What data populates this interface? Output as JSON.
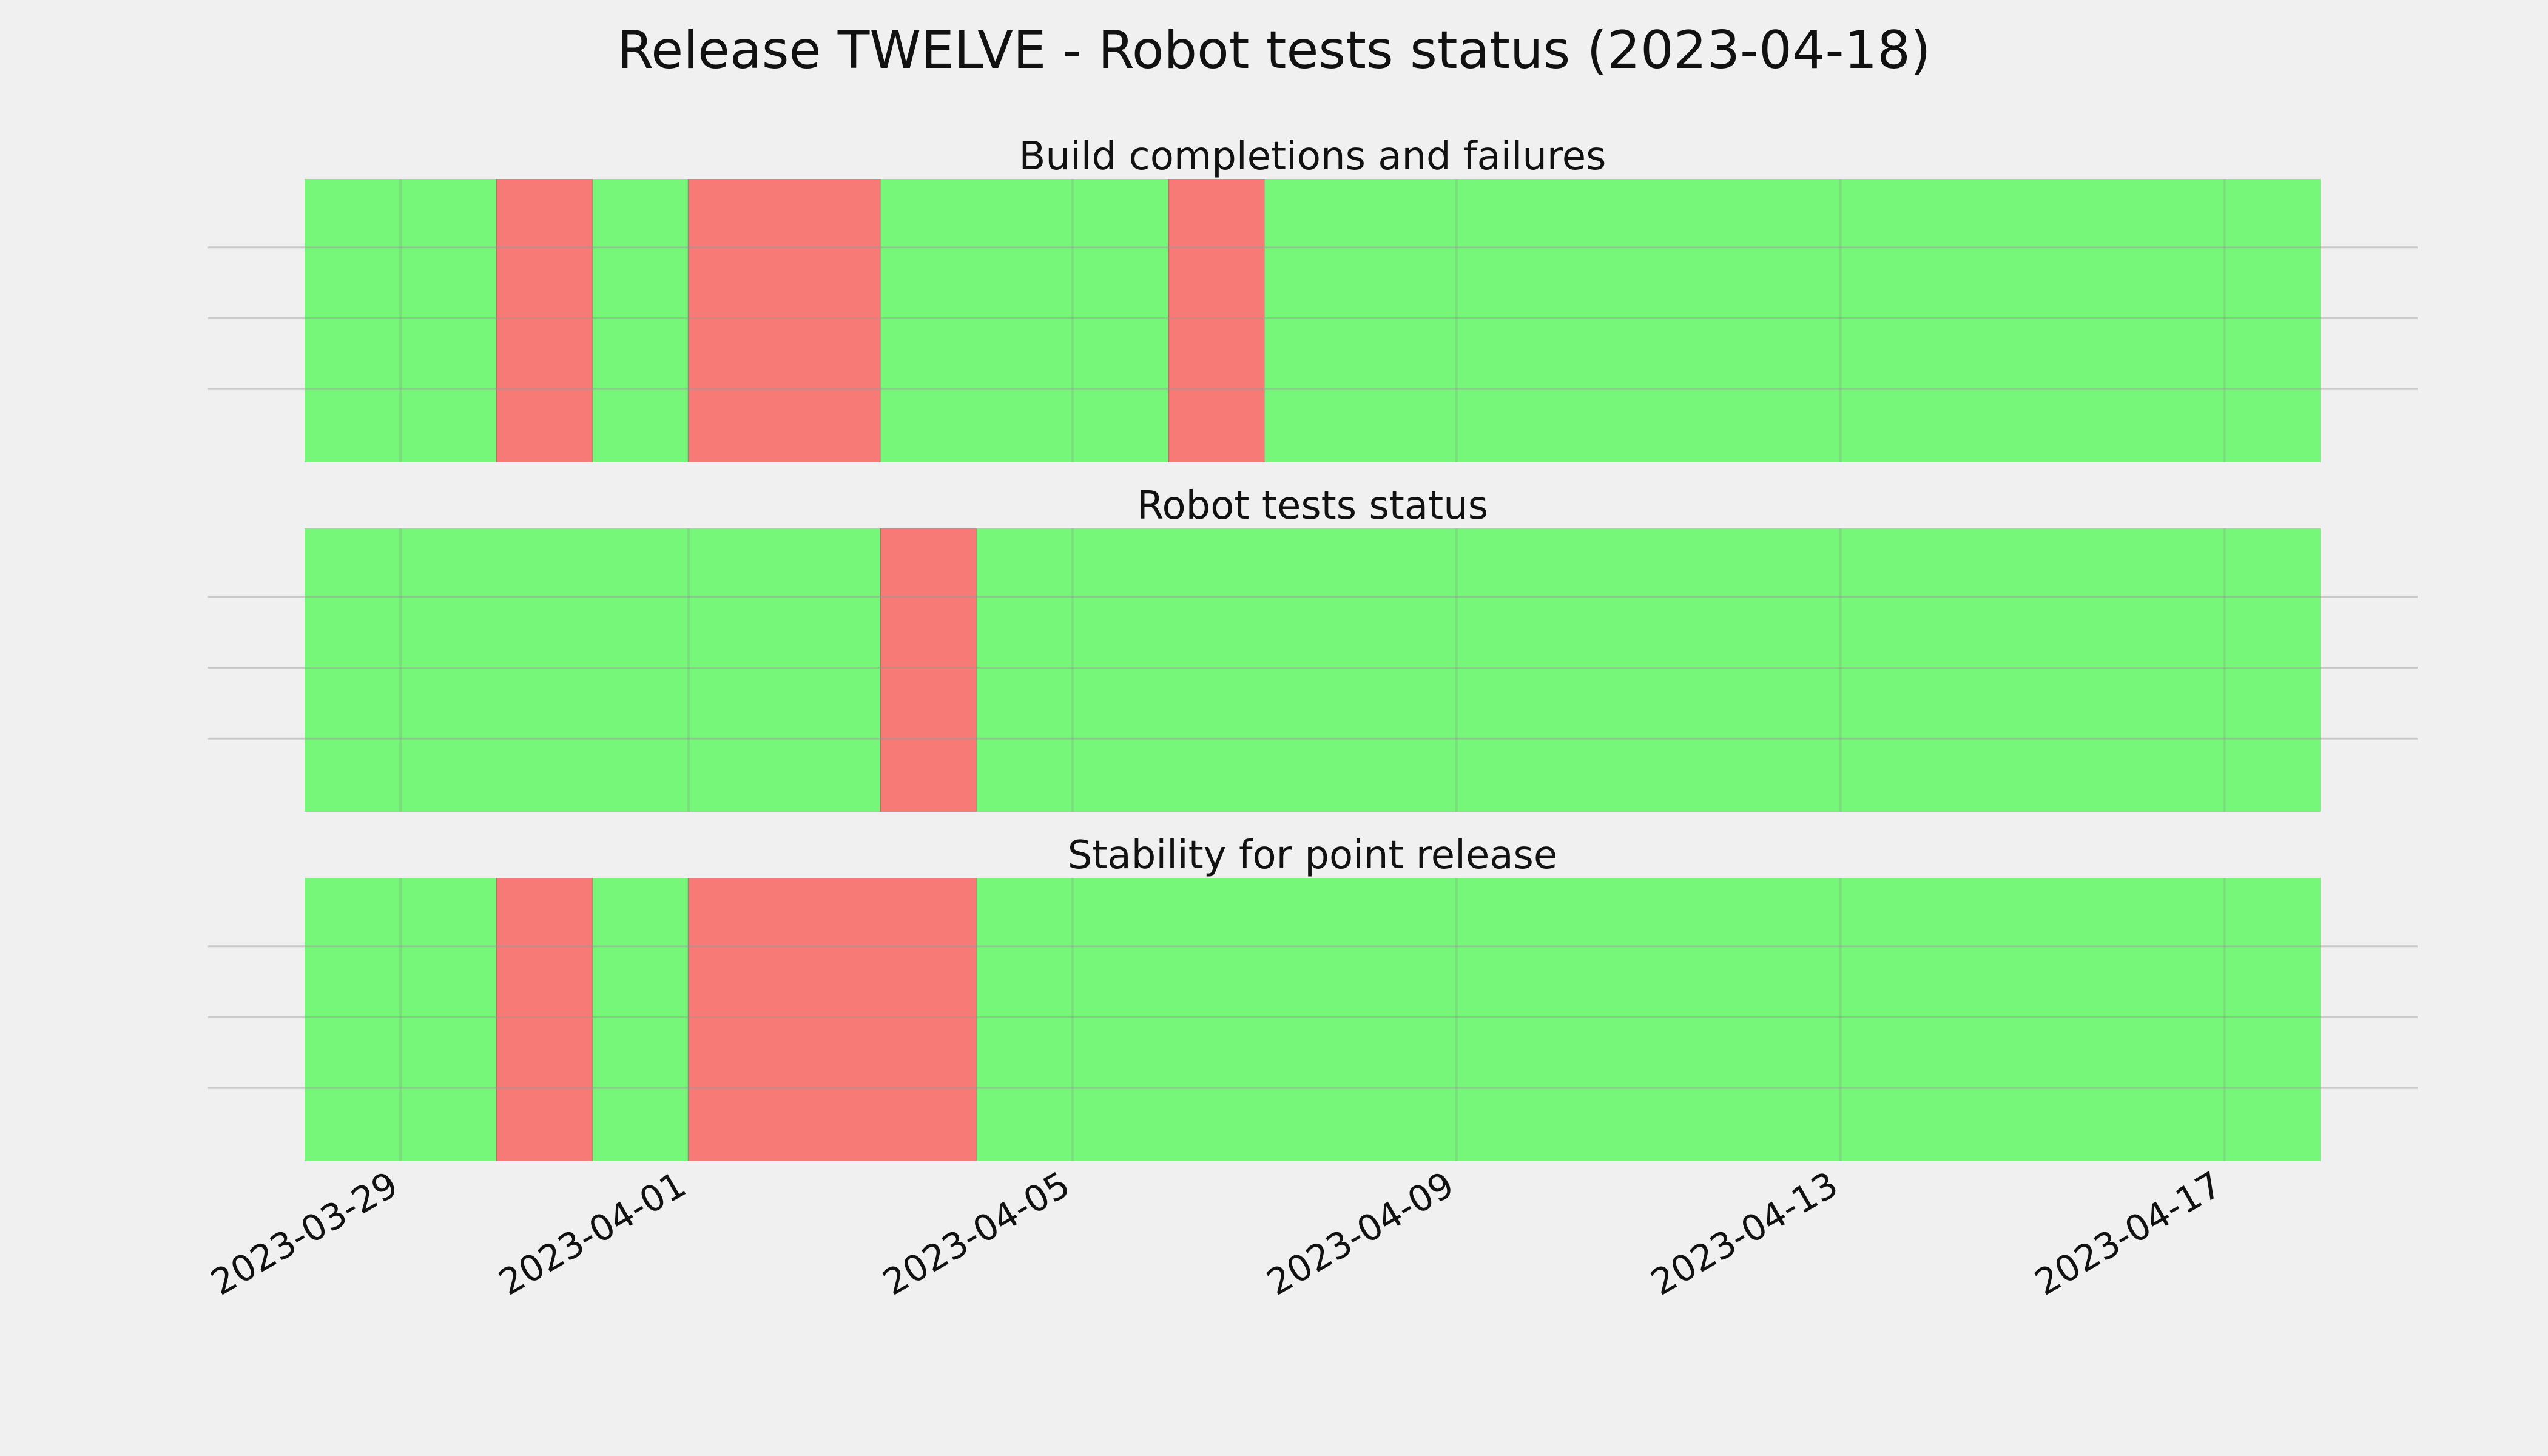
{
  "chart_data": {
    "type": "timeline",
    "title": "Release TWELVE - Robot tests status (2023-04-18)",
    "x_unit": "date",
    "xlim": [
      "2023-03-28",
      "2023-04-18"
    ],
    "x_tick_labels": [
      "2023-03-29",
      "2023-04-01",
      "2023-04-05",
      "2023-04-09",
      "2023-04-13",
      "2023-04-17"
    ],
    "grid": true,
    "colors": {
      "pass": "#77f77a",
      "fail": "#f77a77",
      "background": "#f0f0f0"
    },
    "panels": [
      {
        "title": "Build completions and failures",
        "segments": [
          {
            "start": "2023-03-28",
            "end": "2023-03-30",
            "status": "pass"
          },
          {
            "start": "2023-03-30",
            "end": "2023-03-31",
            "status": "fail"
          },
          {
            "start": "2023-03-31",
            "end": "2023-04-01",
            "status": "pass"
          },
          {
            "start": "2023-04-01",
            "end": "2023-04-03",
            "status": "fail"
          },
          {
            "start": "2023-04-03",
            "end": "2023-04-06",
            "status": "pass"
          },
          {
            "start": "2023-04-06",
            "end": "2023-04-07",
            "status": "fail"
          },
          {
            "start": "2023-04-07",
            "end": "2023-04-18",
            "status": "pass"
          }
        ]
      },
      {
        "title": "Robot tests status",
        "segments": [
          {
            "start": "2023-03-28",
            "end": "2023-04-03",
            "status": "pass"
          },
          {
            "start": "2023-04-03",
            "end": "2023-04-04",
            "status": "fail"
          },
          {
            "start": "2023-04-04",
            "end": "2023-04-18",
            "status": "pass"
          }
        ]
      },
      {
        "title": "Stability for point release",
        "segments": [
          {
            "start": "2023-03-28",
            "end": "2023-03-30",
            "status": "pass"
          },
          {
            "start": "2023-03-30",
            "end": "2023-03-31",
            "status": "fail"
          },
          {
            "start": "2023-03-31",
            "end": "2023-04-01",
            "status": "pass"
          },
          {
            "start": "2023-04-01",
            "end": "2023-04-04",
            "status": "fail"
          },
          {
            "start": "2023-04-04",
            "end": "2023-04-18",
            "status": "pass"
          }
        ]
      }
    ]
  }
}
